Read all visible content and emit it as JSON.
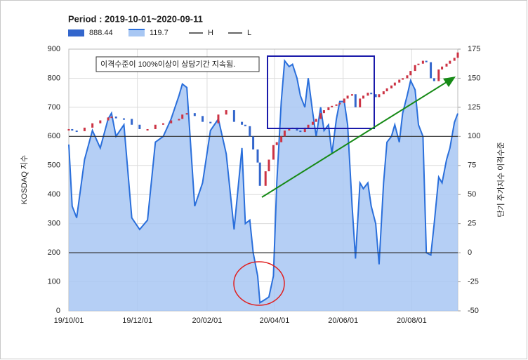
{
  "chart_data": {
    "type": "candle_area",
    "title": "Period : 2019-10-01~2020-09-11",
    "ylabel": "KOSDAQ 지수",
    "y2label": "단기 주가지수 이격수준",
    "x": [
      "19/10/01",
      "19/10/04",
      "19/10/08",
      "19/10/15",
      "19/10/22",
      "19/10/29",
      "19/11/05",
      "19/11/08",
      "19/11/12",
      "19/11/19",
      "19/11/26",
      "19/12/03",
      "19/12/10",
      "19/12/17",
      "19/12/24",
      "19/12/31",
      "20/01/07",
      "20/01/10",
      "20/01/14",
      "20/01/21",
      "20/01/28",
      "20/02/04",
      "20/02/11",
      "20/02/18",
      "20/02/25",
      "20/03/03",
      "20/03/06",
      "20/03/10",
      "20/03/13",
      "20/03/17",
      "20/03/19",
      "20/03/24",
      "20/03/27",
      "20/03/31",
      "20/04/03",
      "20/04/07",
      "20/04/10",
      "20/04/14",
      "20/04/17",
      "20/04/21",
      "20/04/24",
      "20/04/28",
      "20/05/01",
      "20/05/05",
      "20/05/08",
      "20/05/12",
      "20/05/15",
      "20/05/19",
      "20/05/22",
      "20/05/26",
      "20/05/29",
      "20/06/02",
      "20/06/05",
      "20/06/09",
      "20/06/12",
      "20/06/16",
      "20/06/19",
      "20/06/23",
      "20/06/26",
      "20/06/30",
      "20/07/03",
      "20/07/07",
      "20/07/10",
      "20/07/14",
      "20/07/17",
      "20/07/21",
      "20/07/24",
      "20/07/28",
      "20/07/31",
      "20/08/04",
      "20/08/07",
      "20/08/11",
      "20/08/14",
      "20/08/18",
      "20/08/21",
      "20/08/25",
      "20/08/28",
      "20/09/01",
      "20/09/04",
      "20/09/08",
      "20/09/11"
    ],
    "series": [
      {
        "name": "888.44",
        "color": "#3366cc",
        "up_color": "#cc3344",
        "values": [
          625,
          620,
          618,
          630,
          645,
          655,
          665,
          668,
          662,
          660,
          640,
          625,
          625,
          640,
          645,
          655,
          660,
          675,
          680,
          670,
          650,
          645,
          675,
          690,
          650,
          640,
          635,
          600,
          555,
          510,
          430,
          480,
          520,
          570,
          580,
          600,
          620,
          625,
          630,
          620,
          615,
          630,
          640,
          650,
          660,
          680,
          690,
          700,
          705,
          710,
          715,
          730,
          740,
          745,
          700,
          730,
          740,
          750,
          745,
          735,
          745,
          755,
          765,
          775,
          785,
          795,
          800,
          810,
          825,
          845,
          850,
          860,
          855,
          800,
          790,
          830,
          840,
          850,
          860,
          870,
          888.44
        ]
      },
      {
        "name": "119.7",
        "color": "#2a6fdb",
        "fill": "#a8c7f3",
        "axis": "y2",
        "values": [
          93,
          40,
          30,
          80,
          105,
          90,
          115,
          120,
          100,
          110,
          30,
          20,
          28,
          95,
          100,
          115,
          135,
          145,
          142,
          40,
          60,
          105,
          115,
          85,
          20,
          90,
          25,
          28,
          0,
          -20,
          -43,
          -40,
          -38,
          -20,
          60,
          130,
          165,
          160,
          162,
          150,
          135,
          125,
          150,
          120,
          100,
          125,
          105,
          110,
          85,
          115,
          130,
          130,
          110,
          40,
          -5,
          60,
          55,
          60,
          40,
          25,
          -10,
          60,
          95,
          100,
          110,
          95,
          120,
          135,
          148,
          140,
          110,
          100,
          0,
          -2,
          25,
          65,
          60,
          80,
          90,
          112,
          119.7
        ]
      }
    ],
    "reference_lines": [
      {
        "name": "H",
        "value": 100,
        "axis": "y2",
        "color": "#333333",
        "legend_color": "#666666"
      },
      {
        "name": "L",
        "value": 0,
        "axis": "y2",
        "color": "#333333",
        "legend_color": "#666666"
      }
    ],
    "xlim": [
      "19/10/01",
      "20/09/11"
    ],
    "xticks": [
      "19/10/01",
      "19/12/01",
      "20/02/01",
      "20/04/01",
      "20/06/01",
      "20/08/01"
    ],
    "ylim": [
      0,
      900
    ],
    "yticks": [
      0,
      100,
      200,
      300,
      400,
      500,
      600,
      700,
      800,
      900
    ],
    "y2lim": [
      -50,
      175
    ],
    "y2ticks": [
      -50,
      -25,
      0,
      25,
      50,
      75,
      100,
      125,
      150,
      175
    ],
    "grid": true,
    "annotations": [
      "이격수준이 100%이상이 상당기간 지속됨."
    ]
  }
}
